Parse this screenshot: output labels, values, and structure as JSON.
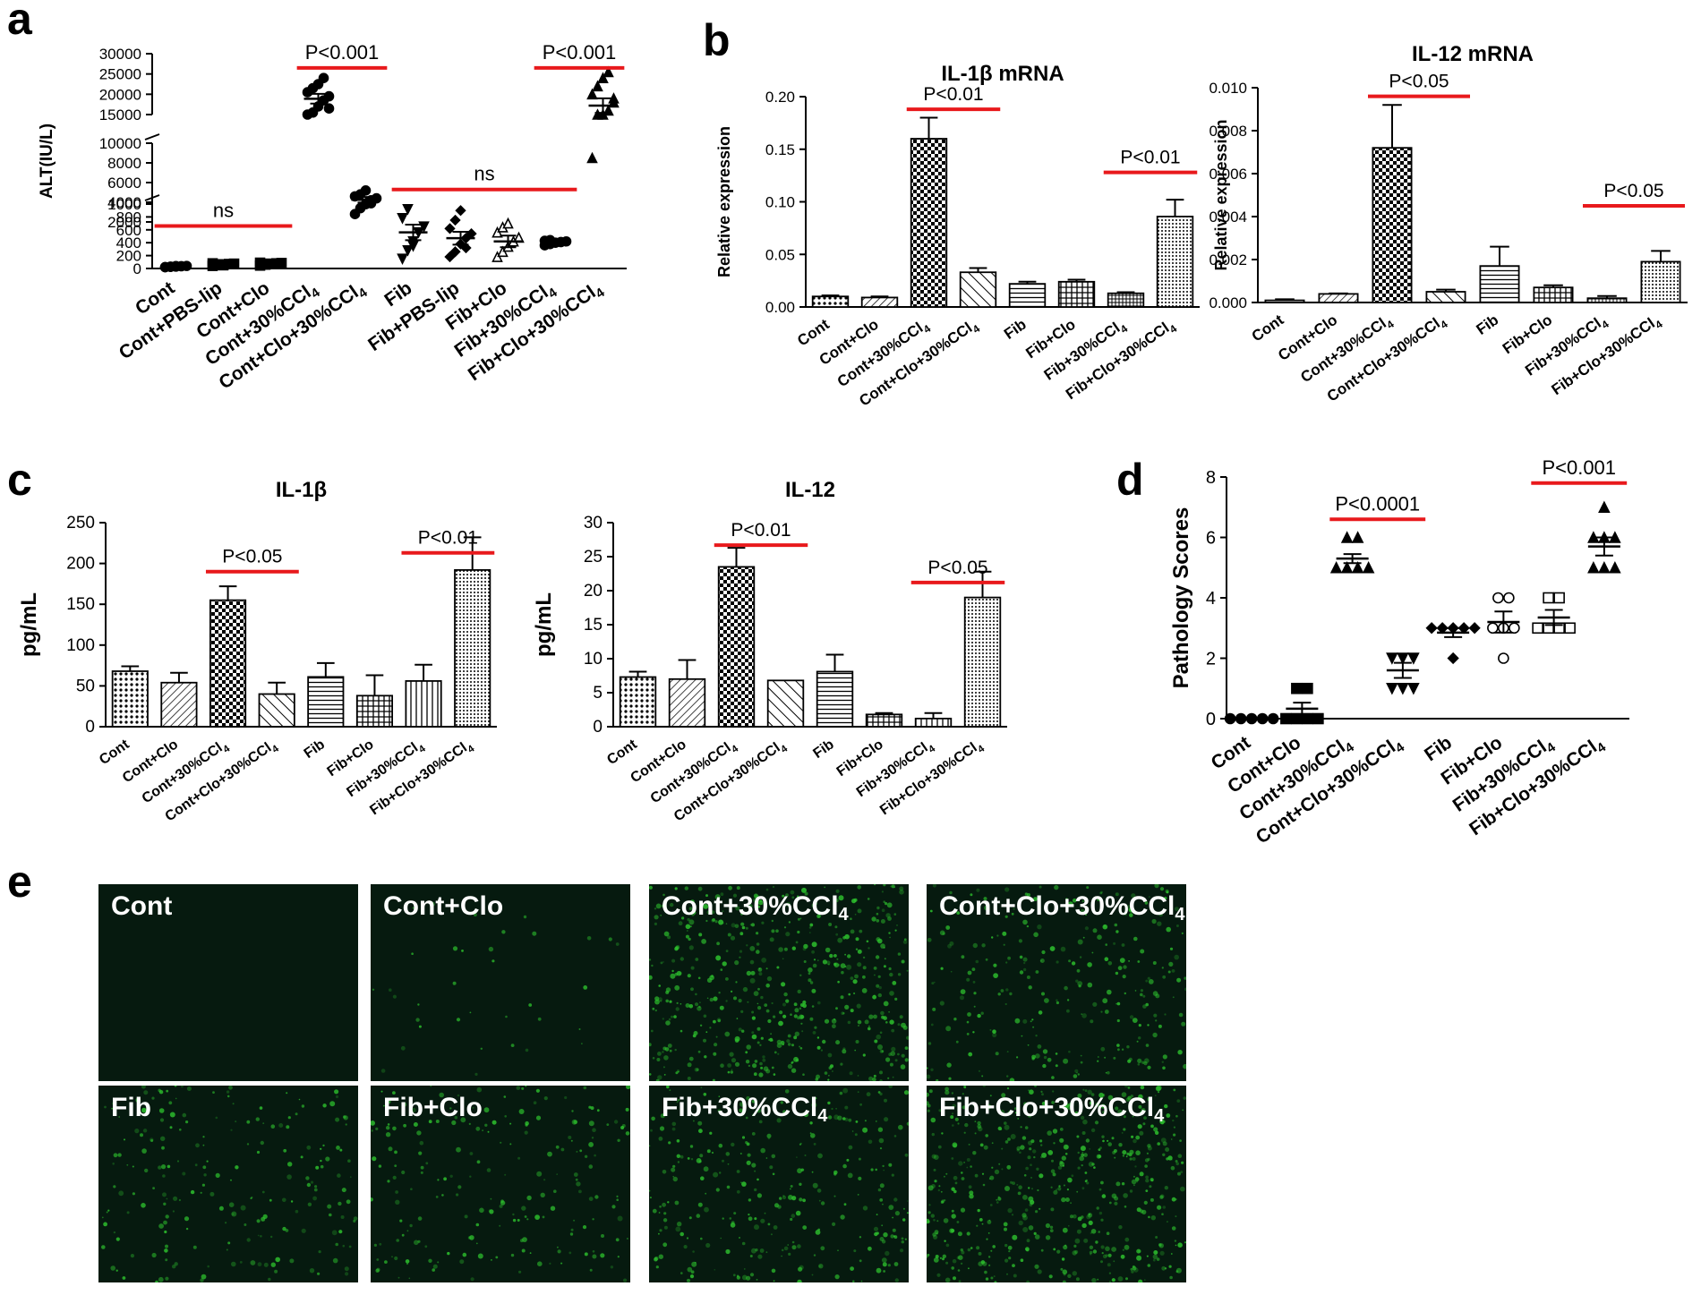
{
  "colors": {
    "significance_line": "#e8191c",
    "axis": "#000000",
    "fluor_bg": "#061a0f",
    "fluor_green": "#2ec42e"
  },
  "panel_letters": {
    "a": "a",
    "b": "b",
    "c": "c",
    "d": "d",
    "e": "e"
  },
  "chart_data": [
    {
      "id": "a",
      "type": "scatter",
      "title": "",
      "xlabel": "",
      "ylabel": "ALT(IU/L)",
      "y_axis": "broken",
      "y_segments": [
        {
          "range": [
            0,
            1000
          ],
          "ticks": [
            0,
            200,
            400,
            600,
            800,
            1000
          ]
        },
        {
          "range": [
            2000,
            10000
          ],
          "ticks": [
            2000,
            4000,
            6000,
            8000,
            10000
          ]
        },
        {
          "range": [
            15000,
            30000
          ],
          "ticks": [
            15000,
            20000,
            25000,
            30000
          ]
        }
      ],
      "categories": [
        "Cont",
        "Cont+PBS-lip",
        "Cont+Clo",
        "Cont+30%CCl4",
        "Cont+Clo+30%CCl4",
        "Fib",
        "Fib+PBS-lip",
        "Fib+Clo",
        "Fib+30%CCl4",
        "Fib+Clo+30%CCl4"
      ],
      "markers": [
        "circle",
        "square",
        "square",
        "circle",
        "circle",
        "triangle-down",
        "diamond",
        "triangle-open",
        "circle",
        "triangle"
      ],
      "points": [
        [
          20,
          25,
          30,
          35,
          40,
          22,
          28,
          38
        ],
        [
          40,
          55,
          60,
          70,
          75,
          80,
          65,
          50
        ],
        [
          45,
          60,
          70,
          80,
          85,
          90,
          75
        ],
        [
          14000,
          15500,
          17000,
          18500,
          19500,
          20500,
          21500,
          22500,
          24000,
          16500
        ],
        [
          2800,
          3400,
          3800,
          4200,
          4400,
          4600,
          4800,
          5200,
          3900
        ],
        [
          150,
          280,
          420,
          560,
          650,
          780,
          920,
          350
        ],
        [
          180,
          260,
          380,
          470,
          540,
          620,
          750,
          900,
          320
        ],
        [
          180,
          260,
          340,
          420,
          480,
          560,
          640,
          700
        ],
        [
          360,
          380,
          400,
          410,
          420,
          430,
          440
        ],
        [
          8500,
          12000,
          14000,
          16000,
          18000,
          20000,
          22000,
          24000,
          25500,
          19000
        ]
      ],
      "means": [
        30,
        62,
        72,
        18900,
        4250,
        560,
        470,
        420,
        405,
        17200
      ],
      "sems": [
        6,
        8,
        8,
        1200,
        280,
        120,
        100,
        90,
        15,
        1800
      ],
      "annotations": [
        {
          "text": "ns",
          "from": "Cont",
          "to": "Cont+Clo",
          "y": 660
        },
        {
          "text": "P<0.001",
          "from": "Cont+30%CCl4",
          "to": "Cont+Clo+30%CCl4",
          "y": 26500
        },
        {
          "text": "ns",
          "from": "Fib",
          "to": "Fib+30%CCl4",
          "y": 5300
        },
        {
          "text": "P<0.001",
          "from": "Fib+30%CCl4",
          "to": "Fib+Clo+30%CCl4",
          "y": 26500
        }
      ]
    },
    {
      "id": "b1",
      "type": "bar",
      "title": "IL-1β mRNA",
      "xlabel": "",
      "ylabel": "Relative expression",
      "ylim": [
        0,
        0.2
      ],
      "yticks": [
        0.0,
        0.05,
        0.1,
        0.15,
        0.2
      ],
      "tick_format": [
        "0.00",
        "0.05",
        "0.10",
        "0.15",
        "0.20"
      ],
      "categories": [
        "Cont",
        "Cont+Clo",
        "Cont+30%CCl4",
        "Cont+Clo+30%CCl4",
        "Fib",
        "Fib+Clo",
        "Fib+30%CCl4",
        "Fib+Clo+30%CCl4"
      ],
      "values": [
        0.01,
        0.009,
        0.16,
        0.033,
        0.022,
        0.024,
        0.013,
        0.086
      ],
      "errors": [
        0.001,
        0.001,
        0.02,
        0.004,
        0.002,
        0.002,
        0.001,
        0.016
      ],
      "patterns": [
        "dots",
        "diag",
        "check",
        "diag-wide",
        "hlines",
        "grid",
        "grid-fine",
        "dots-dense"
      ],
      "annotations": [
        {
          "text": "P<0.01",
          "from": "Cont+30%CCl4",
          "to": "Cont+Clo+30%CCl4",
          "y": 0.188
        },
        {
          "text": "P<0.01",
          "from": "Fib+30%CCl4",
          "to": "Fib+Clo+30%CCl4",
          "y": 0.128
        }
      ]
    },
    {
      "id": "b2",
      "type": "bar",
      "title": "IL-12 mRNA",
      "xlabel": "",
      "ylabel": "Relative expression",
      "ylim": [
        0,
        0.01
      ],
      "yticks": [
        0.0,
        0.002,
        0.004,
        0.006,
        0.008,
        0.01
      ],
      "tick_format": [
        "0.000",
        "0.002",
        "0.004",
        "0.006",
        "0.008",
        "0.010"
      ],
      "categories": [
        "Cont",
        "Cont+Clo",
        "Cont+30%CCl4",
        "Cont+Clo+30%CCl4",
        "Fib",
        "Fib+Clo",
        "Fib+30%CCl4",
        "Fib+Clo+30%CCl4"
      ],
      "values": [
        0.0001,
        0.0004,
        0.0072,
        0.0005,
        0.0017,
        0.0007,
        0.0002,
        0.0019
      ],
      "errors": [
        5e-05,
        2e-05,
        0.002,
        0.0001,
        0.0009,
        0.0001,
        0.0001,
        0.0005
      ],
      "patterns": [
        "dots",
        "diag",
        "check",
        "diag-wide",
        "hlines",
        "grid",
        "grid-fine",
        "dots-dense"
      ],
      "annotations": [
        {
          "text": "P<0.05",
          "from": "Cont+30%CCl4",
          "to": "Cont+Clo+30%CCl4",
          "y": 0.0096
        },
        {
          "text": "P<0.05",
          "from": "Fib+30%CCl4",
          "to": "Fib+Clo+30%CCl4",
          "y": 0.0045
        }
      ]
    },
    {
      "id": "c1",
      "type": "bar",
      "title": "IL-1β",
      "xlabel": "",
      "ylabel": "pg/mL",
      "ylim": [
        0,
        250
      ],
      "yticks": [
        0,
        50,
        100,
        150,
        200,
        250
      ],
      "tick_format": [
        "0",
        "50",
        "100",
        "150",
        "200",
        "250"
      ],
      "categories": [
        "Cont",
        "Cont+Clo",
        "Cont+30%CCl4",
        "Cont+Clo+30%CCl4",
        "Fib",
        "Fib+Clo",
        "Fib+30%CCl4",
        "Fib+Clo+30%CCl4"
      ],
      "values": [
        68,
        54,
        155,
        40,
        61,
        38,
        56,
        192
      ],
      "errors": [
        6,
        12,
        17,
        14,
        17,
        25,
        20,
        40
      ],
      "patterns": [
        "dots",
        "diag",
        "check",
        "diag-wide",
        "hlines",
        "grid",
        "vlines",
        "dots-dense"
      ],
      "annotations": [
        {
          "text": "P<0.05",
          "from": "Cont+30%CCl4",
          "to": "Cont+Clo+30%CCl4",
          "y": 190
        },
        {
          "text": "P<0.01",
          "from": "Fib+30%CCl4",
          "to": "Fib+Clo+30%CCl4",
          "y": 213
        }
      ]
    },
    {
      "id": "c2",
      "type": "bar",
      "title": "IL-12",
      "xlabel": "",
      "ylabel": "pg/mL",
      "ylim": [
        0,
        30
      ],
      "yticks": [
        0,
        5,
        10,
        15,
        20,
        25,
        30
      ],
      "tick_format": [
        "0",
        "5",
        "10",
        "15",
        "20",
        "25",
        "30"
      ],
      "categories": [
        "Cont",
        "Cont+Clo",
        "Cont+30%CCl4",
        "Cont+Clo+30%CCl4",
        "Fib",
        "Fib+Clo",
        "Fib+30%CCl4",
        "Fib+Clo+30%CCl4"
      ],
      "values": [
        7.3,
        7.0,
        23.5,
        6.8,
        8.1,
        1.8,
        1.2,
        19.0
      ],
      "errors": [
        0.8,
        2.8,
        2.8,
        0,
        2.5,
        0.2,
        0.8,
        3.8
      ],
      "patterns": [
        "dots",
        "diag",
        "check",
        "diag-wide",
        "hlines",
        "grid",
        "vlines",
        "dots-dense"
      ],
      "annotations": [
        {
          "text": "P<0.01",
          "from": "Cont+30%CCl4",
          "to": "Cont+Clo+30%CCl4",
          "y": 26.7
        },
        {
          "text": "P<0.05",
          "from": "Fib+30%CCl4",
          "to": "Fib+Clo+30%CCl4",
          "y": 21.2
        }
      ]
    },
    {
      "id": "d",
      "type": "scatter",
      "title": "",
      "xlabel": "",
      "ylabel": "Pathology Scores",
      "ylim": [
        0,
        8
      ],
      "yticks": [
        0,
        2,
        4,
        6,
        8
      ],
      "tick_format": [
        "0",
        "2",
        "4",
        "6",
        "8"
      ],
      "categories": [
        "Cont",
        "Cont+Clo",
        "Cont+30%CCl4",
        "Cont+Clo+30%CCl4",
        "Fib",
        "Fib+Clo",
        "Fib+30%CCl4",
        "Fib+Clo+30%CCl4"
      ],
      "markers": [
        "circle",
        "square",
        "triangle",
        "triangle-down",
        "diamond",
        "circle-open",
        "square-open",
        "triangle"
      ],
      "points": [
        [
          0,
          0,
          0,
          0,
          0
        ],
        [
          0,
          0,
          0,
          0,
          1,
          1
        ],
        [
          5,
          5,
          5,
          6,
          6,
          5
        ],
        [
          1,
          1,
          2,
          2,
          2,
          1
        ],
        [
          2,
          3,
          3,
          3,
          3,
          3
        ],
        [
          2,
          3,
          3,
          4,
          4,
          3
        ],
        [
          3,
          3,
          3,
          4,
          4,
          3
        ],
        [
          5,
          5,
          6,
          6,
          6,
          7,
          5
        ]
      ],
      "means": [
        0,
        0.33,
        5.3,
        1.6,
        2.85,
        3.2,
        3.35,
        5.7
      ],
      "sems": [
        0,
        0.2,
        0.15,
        0.25,
        0.15,
        0.35,
        0.25,
        0.3
      ],
      "annotations": [
        {
          "text": "P<0.0001",
          "from": "Cont+30%CCl4",
          "to": "Cont+Clo+30%CCl4",
          "y": 6.6
        },
        {
          "text": "P<0.001",
          "from": "Fib+30%CCl4",
          "to": "Fib+Clo+30%CCl4",
          "y": 7.8
        }
      ]
    }
  ],
  "micrographs": [
    {
      "base": "Cont",
      "sub": "",
      "intensity": 0.0
    },
    {
      "base": "Cont+Clo",
      "sub": "",
      "intensity": 0.05
    },
    {
      "base": "Cont+30%CCl",
      "sub": "4",
      "intensity": 0.75
    },
    {
      "base": "Cont+Clo+30%CCl",
      "sub": "4",
      "intensity": 0.4
    },
    {
      "base": "Fib",
      "sub": "",
      "intensity": 0.3
    },
    {
      "base": "Fib+Clo",
      "sub": "",
      "intensity": 0.3
    },
    {
      "base": "Fib+30%CCl",
      "sub": "4",
      "intensity": 0.45
    },
    {
      "base": "Fib+Clo+30%CCl",
      "sub": "4",
      "intensity": 0.8
    }
  ]
}
